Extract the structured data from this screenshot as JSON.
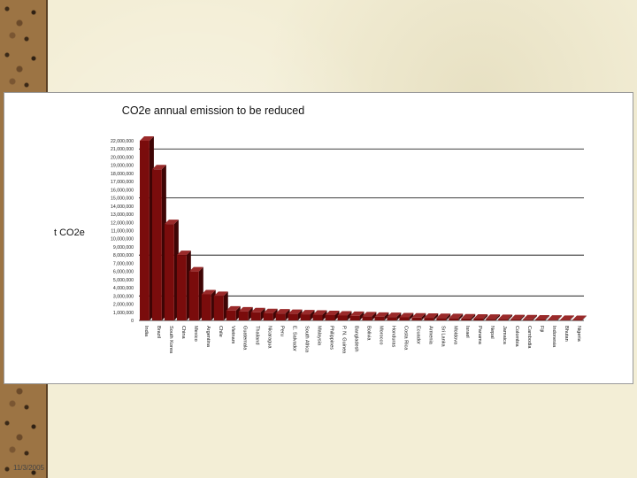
{
  "footer": {
    "date": "11/3/2005"
  },
  "colors": {
    "bar_front": "#7a0c0c",
    "bar_top": "#9a2a2a",
    "bar_side": "#3e0505",
    "gridline": "#000000"
  },
  "chart_data": {
    "type": "bar",
    "title": "CO2e annual emission to be reduced",
    "xlabel": "",
    "ylabel": "t CO2e",
    "ylim": [
      0,
      22000000
    ],
    "yticks": [
      0,
      1000000,
      2000000,
      3000000,
      4000000,
      5000000,
      6000000,
      7000000,
      8000000,
      9000000,
      10000000,
      11000000,
      12000000,
      13000000,
      14000000,
      15000000,
      16000000,
      17000000,
      18000000,
      19000000,
      20000000,
      21000000,
      22000000
    ],
    "ytick_labels": [
      "0",
      "1,000,000",
      "2,000,000",
      "3,000,000",
      "4,000,000",
      "5,000,000",
      "6,000,000",
      "7,000,000",
      "8,000,000",
      "9,000,000",
      "10,000,000",
      "11,000,000",
      "12,000,000",
      "13,000,000",
      "14,000,000",
      "15,000,000",
      "16,000,000",
      "17,000,000",
      "18,000,000",
      "19,000,000",
      "20,000,000",
      "21,000,000",
      "22,000,000"
    ],
    "grid_values": [
      0,
      3000000,
      8000000,
      15000000,
      21000000
    ],
    "categories": [
      "India",
      "Brazil",
      "South Korea",
      "China",
      "Mexico",
      "Argentina",
      "Chile",
      "Vietnam",
      "Guatemala",
      "Thailand",
      "Nicaragua",
      "Peru",
      "E. Salvador",
      "South Africa",
      "Malaysia",
      "Philippines",
      "P. N. Guinea",
      "Bangladesh",
      "Bolivia",
      "Morocco",
      "Honduras",
      "Costa Rica",
      "Ecuador",
      "Armenia",
      "Sri Lanka",
      "Moldova",
      "Israel",
      "Panama",
      "Nepal",
      "Jamaica",
      "Colombia",
      "Cambodia",
      "Fiji",
      "Indonesia",
      "Bhutan",
      "Nigeria"
    ],
    "values": [
      22000000,
      18500000,
      11800000,
      8000000,
      6000000,
      3200000,
      3000000,
      1200000,
      1100000,
      1000000,
      900000,
      850000,
      800000,
      750000,
      700000,
      650000,
      600000,
      550000,
      500000,
      450000,
      420000,
      380000,
      350000,
      320000,
      300000,
      280000,
      250000,
      220000,
      200000,
      180000,
      150000,
      130000,
      110000,
      90000,
      70000,
      50000
    ]
  }
}
